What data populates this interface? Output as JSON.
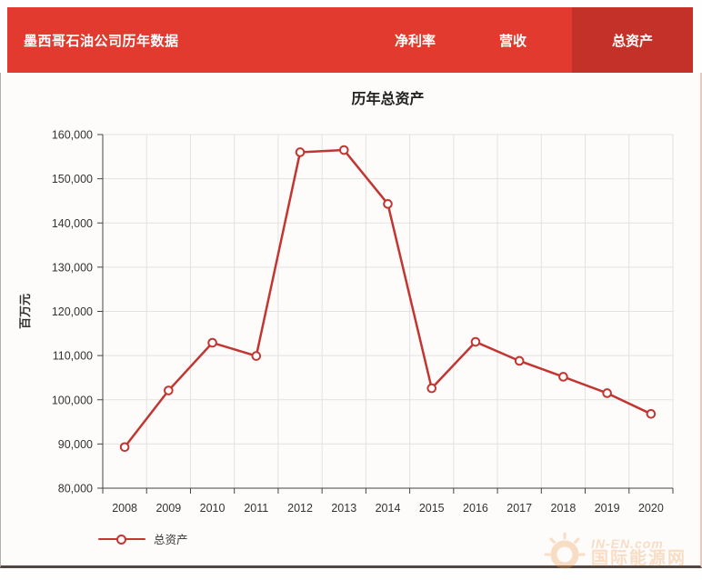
{
  "header": {
    "title": "墨西哥石油公司历年数据",
    "tabs": [
      {
        "label": "净利率",
        "active": false
      },
      {
        "label": "营收",
        "active": false
      },
      {
        "label": "总资产",
        "active": true
      }
    ]
  },
  "chart_data": {
    "type": "line",
    "title": "历年总资产",
    "categories": [
      "2008",
      "2009",
      "2010",
      "2011",
      "2012",
      "2013",
      "2014",
      "2015",
      "2016",
      "2017",
      "2018",
      "2019",
      "2020"
    ],
    "values": [
      89300,
      102100,
      112900,
      109900,
      156000,
      156500,
      144300,
      102600,
      113100,
      108800,
      105200,
      101500,
      96800
    ],
    "xlabel": "",
    "ylabel": "百万元",
    "ylim": [
      80000,
      160000
    ],
    "ytick_step": 10000,
    "grid": true,
    "legend": [
      "总资产"
    ],
    "legend_position": "bottom-left",
    "marker": "hollow-circle",
    "series_color": "#c23531"
  },
  "watermark": {
    "line1": "IN-EN.com",
    "line2": "国际能源网"
  },
  "colors": {
    "header_bar": "#e23a2e",
    "active_tab": "#c43128",
    "series_line": "#c23531",
    "watermark_orange": "#f09a52",
    "grid_line": "#e2e2e2"
  }
}
